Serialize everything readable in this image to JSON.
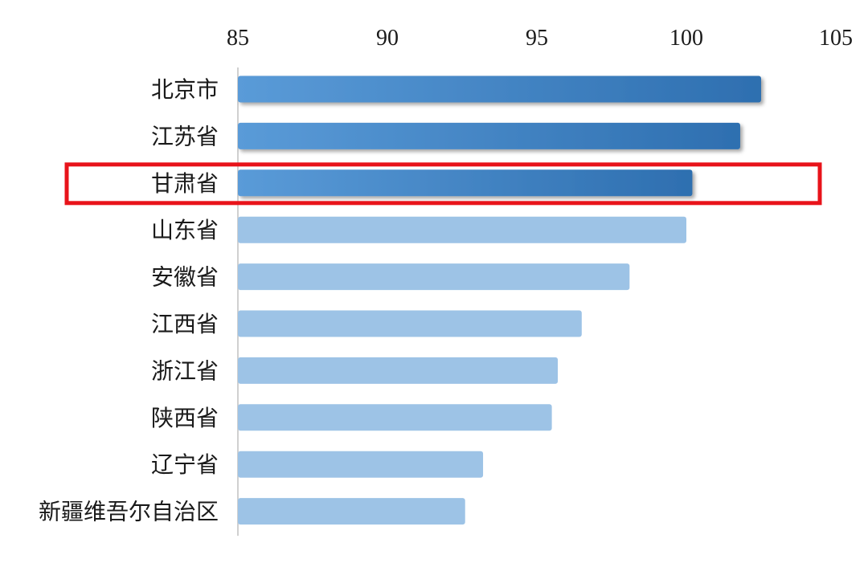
{
  "chart_data": {
    "type": "bar",
    "orientation": "horizontal",
    "title": "",
    "xlabel": "",
    "ylabel": "",
    "xlim": [
      85,
      105
    ],
    "ticks": [
      85,
      90,
      95,
      100,
      105
    ],
    "tick_position": "top",
    "grid": false,
    "categories": [
      "北京市",
      "江苏省",
      "甘肃省",
      "山东省",
      "安徽省",
      "江西省",
      "浙江省",
      "陕西省",
      "辽宁省",
      "新疆维吾尔自治区"
    ],
    "values": [
      102.5,
      101.8,
      100.2,
      100.0,
      98.1,
      96.5,
      95.7,
      95.5,
      93.2,
      92.6
    ],
    "highlighted_category": "甘肃省",
    "emphasized_count": 3,
    "colors": {
      "emphasized_start": "#5a9bd8",
      "emphasized_end": "#2e6fb0",
      "normal": "#9dc3e6",
      "highlight_box": "#e8131a",
      "axis": "#d0d0d0",
      "text": "#1a1a1a"
    }
  }
}
